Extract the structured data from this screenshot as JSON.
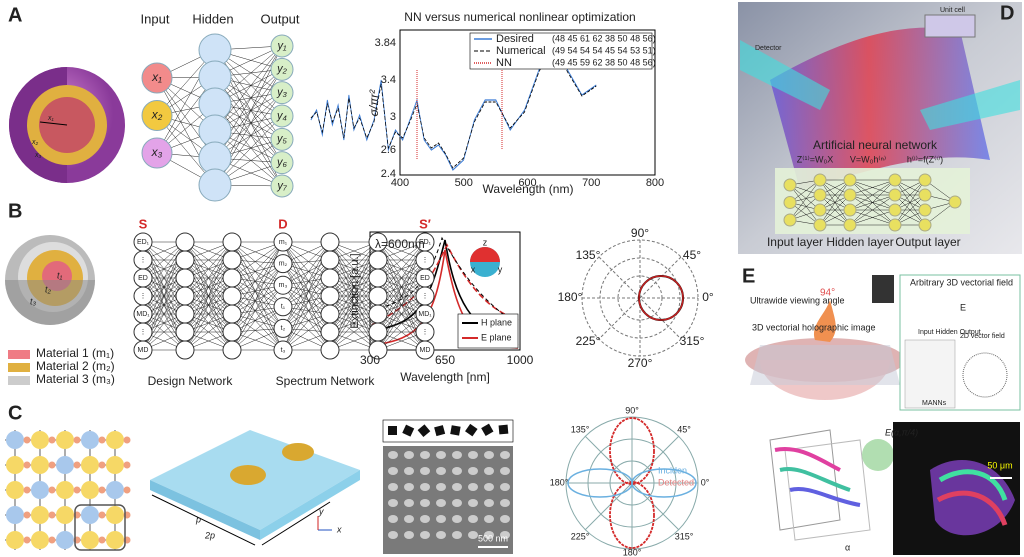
{
  "panels": {
    "A": {
      "label": "A",
      "headers": [
        "Input",
        "Hidden",
        "Output"
      ],
      "inputs": [
        "x₁",
        "x₂",
        "x₃"
      ],
      "outputs": [
        "y₁",
        "y₂",
        "y₃",
        "y₄",
        "y₅",
        "y₆",
        "y₇"
      ],
      "sphere_labels": [
        "x₁",
        "x₂",
        "x₃"
      ],
      "chart": {
        "title": "NN versus numerical nonlinear optimization",
        "y_label": "σ/πr²",
        "x_label": "Wavelength (nm)",
        "yticks": [
          "2.4",
          "2.6",
          "3",
          "3.4",
          "3.84"
        ],
        "xticks": [
          "400",
          "500",
          "600",
          "700",
          "800"
        ],
        "legend": [
          {
            "name": "Desired",
            "values": "(48 45 61 62 38 50 48 56)"
          },
          {
            "name": "Numerical",
            "values": "(49 54 54 54 45 54 53 51)"
          },
          {
            "name": "NN",
            "values": "(49 45 59 62 38 50 48 56)"
          }
        ]
      }
    },
    "B": {
      "label": "B",
      "sphere_labels": [
        "t₁",
        "t₂",
        "t₃"
      ],
      "materials": [
        "Material 1 (m₁)",
        "Material 2 (m₂)",
        "Material 3 (m₃)"
      ],
      "network_labels": [
        "S",
        "D",
        "S′"
      ],
      "s_nodes": [
        "ED₁",
        "⋮",
        "ED",
        "⋮",
        "MD₁",
        "⋮",
        "MD"
      ],
      "d_nodes": [
        "m₁",
        "m₂",
        "m₃",
        "t₁",
        "t₂",
        "t₃"
      ],
      "sp_nodes": [
        "ED₁",
        "⋮",
        "ED",
        "⋮",
        "MD₁",
        "⋮",
        "MD"
      ],
      "network_names": [
        "Design Network",
        "Spectrum Network"
      ],
      "chart": {
        "annotation": "λ=600nm",
        "y_label": "Extinction [a.u.]",
        "x_label": "Wavelength [nm]",
        "xticks": [
          "300",
          "650",
          "1000"
        ],
        "legend": [
          "H plane",
          "E plane"
        ],
        "axes": [
          "z",
          "x",
          "y"
        ]
      },
      "polar": [
        "90°",
        "45°",
        "0°",
        "315°",
        "270°",
        "225°",
        "180°",
        "135°"
      ]
    },
    "C": {
      "label": "C",
      "slab": [
        "p",
        "2p",
        "y",
        "x"
      ],
      "scale": "500 nm",
      "polar": {
        "angles": [
          "90°",
          "45°",
          "0°",
          "315°",
          "180°",
          "225°",
          "180°",
          "135°"
        ],
        "legend": [
          "Inciden",
          "Detected"
        ]
      }
    },
    "D": {
      "label": "D",
      "unit_cell": "Unit cell",
      "detector": "Detector",
      "title": "Artificial neural network",
      "equations": [
        "Z⁽¹⁾=W₀X",
        "V=W₀h⁽ⁿ⁾",
        "h⁽ⁱ⁾=f(Z⁽ⁱ⁾)"
      ],
      "layers": [
        "Input layer",
        "Hidden layer",
        "Output layer"
      ]
    },
    "E": {
      "label": "E",
      "angle": "94°",
      "texts": [
        "Ultrawide viewing angle",
        "3D vectorial holographic image",
        "Arbitrary 3D vectorial field",
        "Input Hidden Output",
        "MANNs",
        "2D vector field"
      ],
      "field": "E",
      "field_expr": "E(α,π/4)",
      "scale": "50 μm",
      "axis": "α"
    }
  }
}
